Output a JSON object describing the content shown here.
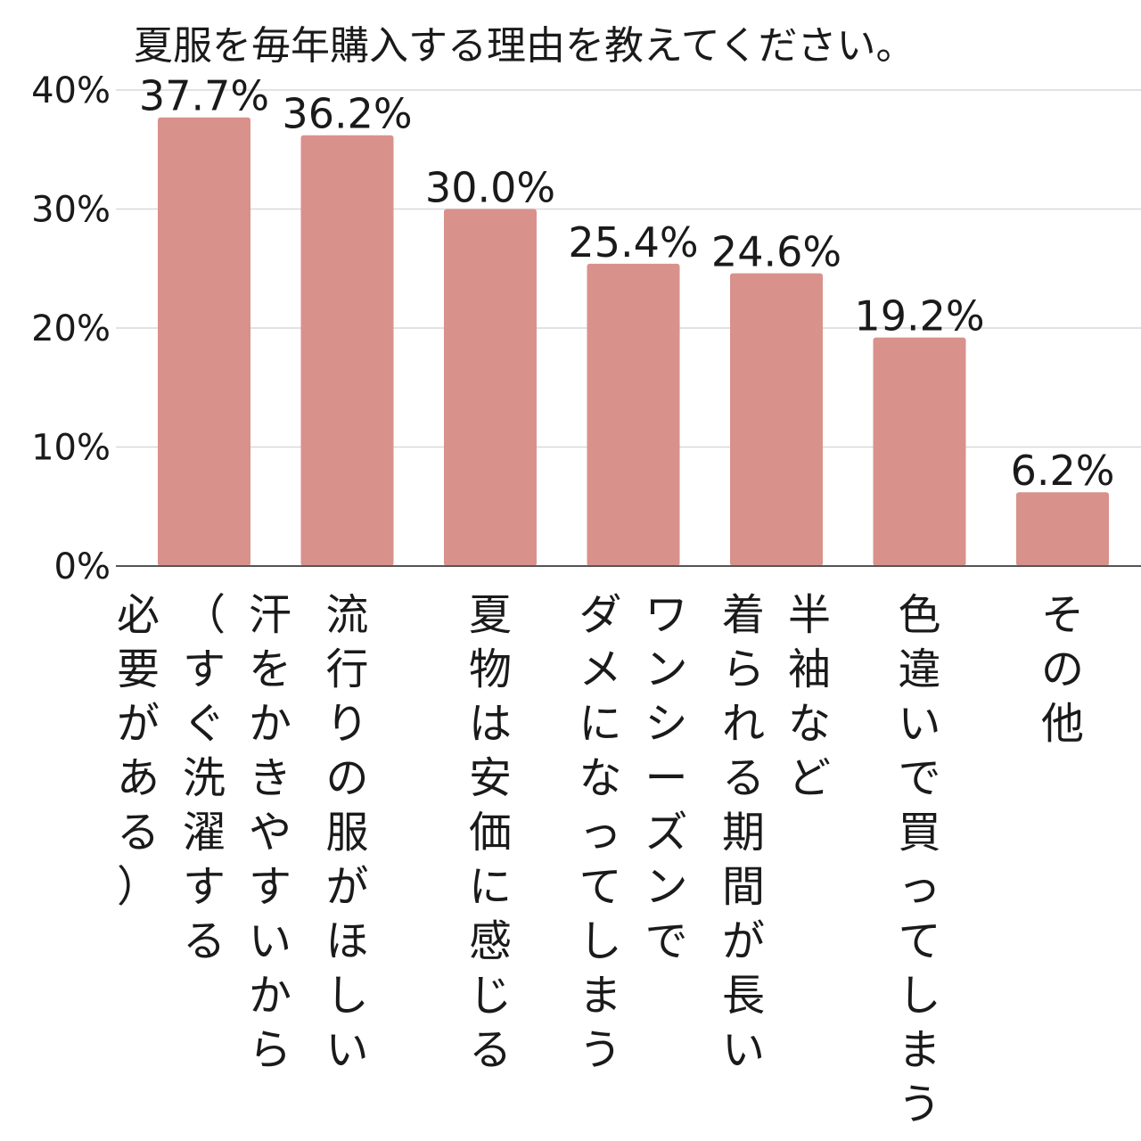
{
  "chart_data": {
    "type": "bar",
    "title": "夏服を毎年購入する理由を教えてください。",
    "categories": [
      [
        "汗をかきやすいから",
        "（すぐ洗濯する",
        "必要がある）"
      ],
      [
        "流行りの服がほしい"
      ],
      [
        "夏物は安価に感じる"
      ],
      [
        "ワンシーズンで",
        "ダメになってしまう"
      ],
      [
        "半袖など",
        "着られる期間が長い"
      ],
      [
        "色違いで買ってしまう"
      ],
      [
        "その他"
      ]
    ],
    "values": [
      37.7,
      36.2,
      30.0,
      25.4,
      24.6,
      19.2,
      6.2
    ],
    "value_labels": [
      "37.7%",
      "36.2%",
      "30.0%",
      "25.4%",
      "24.6%",
      "19.2%",
      "6.2%"
    ],
    "y_ticks": [
      0,
      10,
      20,
      30,
      40
    ],
    "y_tick_labels": [
      "0%",
      "10%",
      "20%",
      "30%",
      "40%"
    ],
    "ylim": [
      0,
      40
    ],
    "grid": true,
    "legend": "none",
    "bar_color": "#d9918c",
    "xlabel": "",
    "ylabel": ""
  }
}
